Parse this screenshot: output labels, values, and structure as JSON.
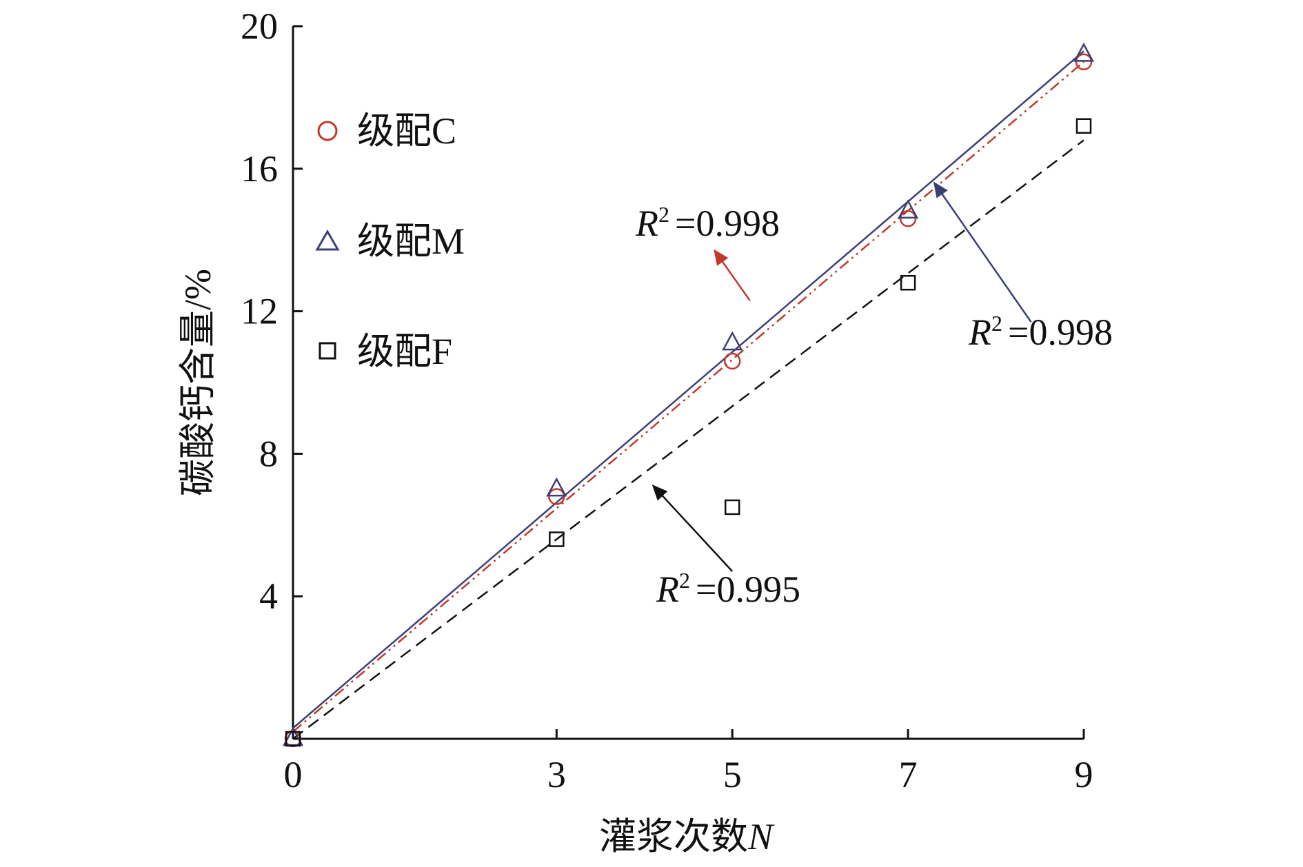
{
  "chart_data": {
    "type": "scatter",
    "xlabel": "灌浆次数",
    "xlabel_var": "N",
    "ylabel": "碳酸钙含量/%",
    "xlim": [
      0,
      9
    ],
    "ylim": [
      0,
      20
    ],
    "x_ticks": [
      0,
      3,
      5,
      7,
      9
    ],
    "x_tick_labels": [
      "0",
      "3",
      "5",
      "7",
      "9"
    ],
    "y_ticks": [
      4,
      8,
      12,
      16,
      20
    ],
    "y_tick_labels": [
      "4",
      "8",
      "12",
      "16",
      "20"
    ],
    "grid": false,
    "legend_position": "top-left",
    "series": [
      {
        "name": "级配C",
        "marker": "circle",
        "color": "#c0392b",
        "points": [
          [
            0,
            0
          ],
          [
            3,
            6.8
          ],
          [
            5,
            10.6
          ],
          [
            7,
            14.6
          ],
          [
            9,
            19.0
          ]
        ],
        "fit": {
          "line": "dash-dot-dot",
          "from": [
            0,
            0.2
          ],
          "to": [
            9,
            19.0
          ],
          "r2_label": "R",
          "r2_sup": "2",
          "r2_value": "=0.998"
        }
      },
      {
        "name": "级配M",
        "marker": "triangle",
        "color": "#3b3f77",
        "points": [
          [
            0,
            0
          ],
          [
            3,
            7.0
          ],
          [
            5,
            11.1
          ],
          [
            7,
            14.8
          ],
          [
            9,
            19.2
          ]
        ],
        "fit": {
          "line": "solid",
          "from": [
            0,
            0.3
          ],
          "to": [
            9,
            19.3
          ],
          "r2_label": "R",
          "r2_sup": "2",
          "r2_value": "=0.998"
        }
      },
      {
        "name": "级配F",
        "marker": "square",
        "color": "#111111",
        "points": [
          [
            0,
            0
          ],
          [
            3,
            5.6
          ],
          [
            5,
            6.5
          ],
          [
            7,
            12.8
          ],
          [
            9,
            17.2
          ]
        ],
        "fit": {
          "line": "dashed",
          "from": [
            0,
            0.0
          ],
          "to": [
            9,
            16.8
          ],
          "r2_label": "R",
          "r2_sup": "2",
          "r2_value": "=0.995"
        }
      }
    ],
    "annotations": [
      {
        "series": "级配C",
        "arrow_color": "#c0392b",
        "from": [
          5.2,
          12.3
        ],
        "to": [
          4.8,
          13.7
        ]
      },
      {
        "series": "级配M",
        "arrow_color": "#3b3f77",
        "from": [
          8.4,
          11.7
        ],
        "to": [
          7.3,
          15.6
        ]
      },
      {
        "series": "级配F",
        "arrow_color": "#111111",
        "from": [
          5.0,
          4.7
        ],
        "to": [
          4.1,
          7.1
        ]
      }
    ]
  }
}
